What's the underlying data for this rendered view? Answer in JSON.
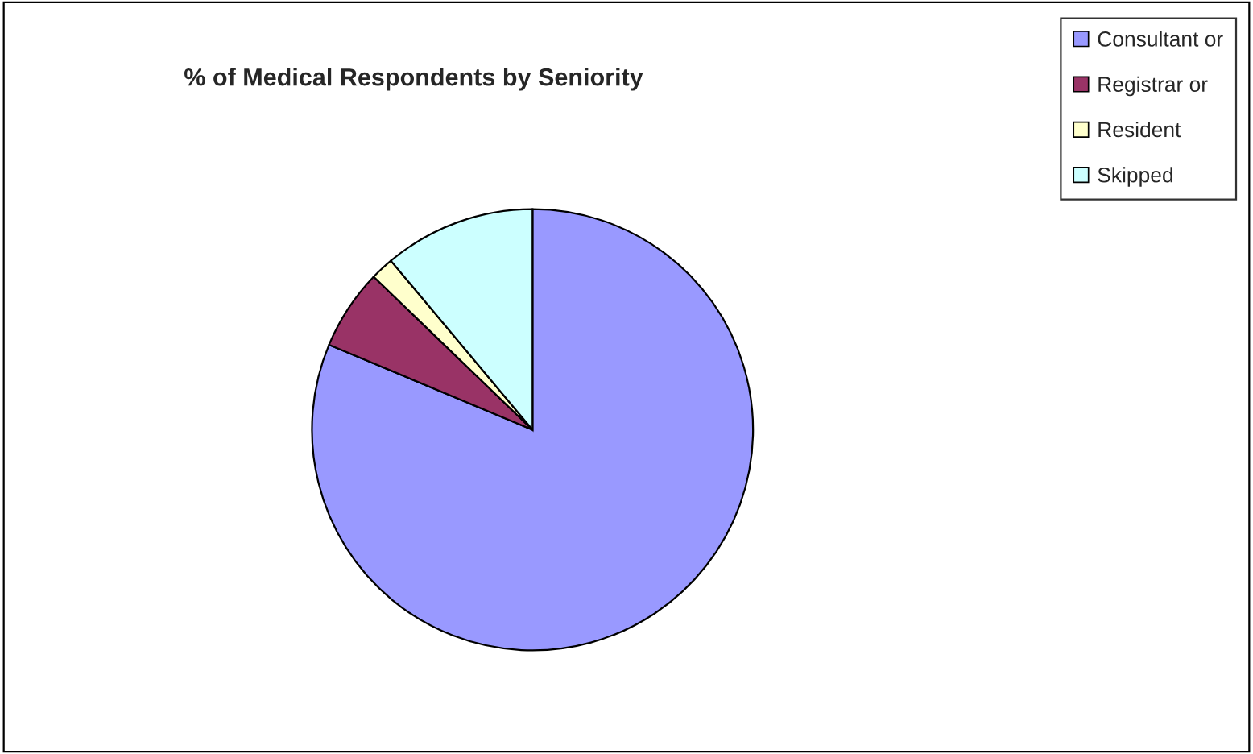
{
  "chart_data": {
    "type": "pie",
    "title": "% of Medical Respondents by Seniority",
    "categories": [
      "Consultant or",
      "Registrar or",
      "Resident",
      "Skipped"
    ],
    "values": [
      81.3,
      5.9,
      1.7,
      11.1
    ],
    "colors": [
      "#9999ff",
      "#993366",
      "#ffffcc",
      "#ccffff"
    ],
    "legend": "top right"
  }
}
